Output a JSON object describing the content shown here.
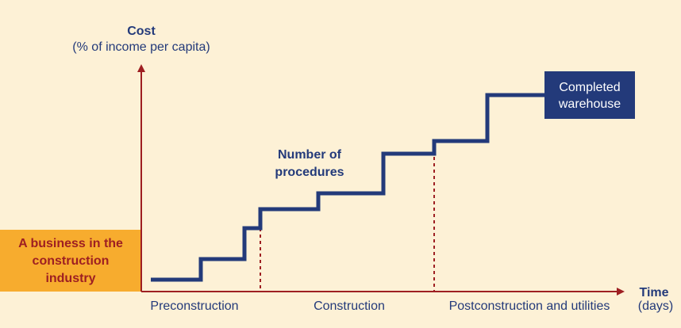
{
  "y_axis": {
    "title": "Cost",
    "subtitle": "(% of income per capita)"
  },
  "x_axis": {
    "title": "Time",
    "subtitle": "(days)"
  },
  "start_box": {
    "lines": [
      "A business in the",
      "construction",
      "industry"
    ]
  },
  "end_box": {
    "lines": [
      "Completed",
      "warehouse"
    ]
  },
  "curve_label": {
    "lines": [
      "Number of",
      "procedures"
    ]
  },
  "phases": [
    "Preconstruction",
    "Construction",
    "Postconstruction and utilities"
  ]
}
